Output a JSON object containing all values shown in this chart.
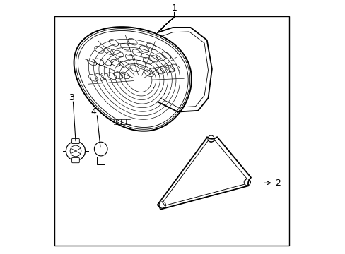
{
  "background_color": "#ffffff",
  "border_color": "#000000",
  "line_color": "#000000",
  "label_color": "#000000",
  "line_width": 1.0
}
